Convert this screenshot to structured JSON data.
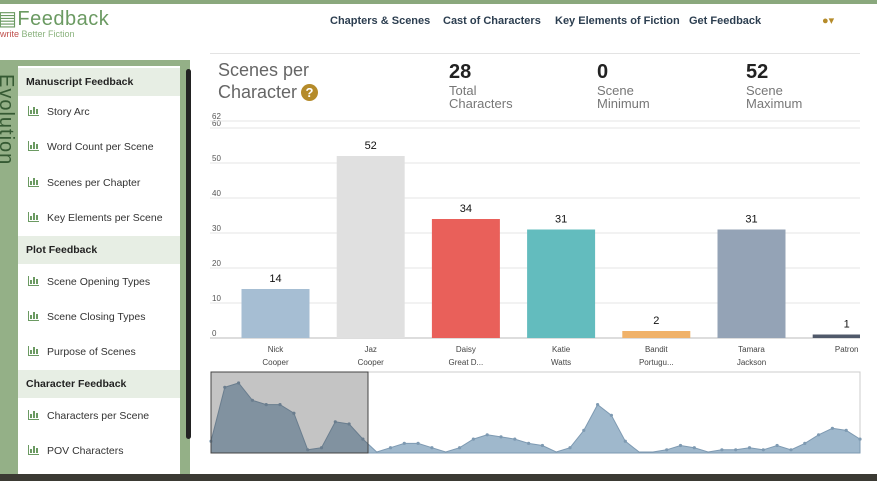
{
  "brand": {
    "title": "Feedback",
    "tagline_rest": "Better Fiction",
    "tagline_first": "write"
  },
  "nav": [
    "Chapters & Scenes",
    "Cast of Characters",
    "Key Elements of Fiction",
    "Get Feedback"
  ],
  "user_icon": "user-icon",
  "side_label": "Evolution",
  "sidebar": {
    "sections": [
      {
        "title": "Manuscript Feedback",
        "items": [
          "Story Arc",
          "Word Count per Scene",
          "Scenes per Chapter",
          "Key Elements per Scene"
        ]
      },
      {
        "title": "Plot Feedback",
        "items": [
          "Scene Opening Types",
          "Scene Closing Types",
          "Purpose of Scenes"
        ]
      },
      {
        "title": "Character Feedback",
        "items": [
          "Characters per Scene",
          "POV Characters"
        ]
      }
    ]
  },
  "stats": {
    "title_line1": "Scenes per",
    "title_line2": "Character",
    "help": "?",
    "total": {
      "value": "28",
      "label1": "Total",
      "label2": "Characters"
    },
    "min": {
      "value": "0",
      "label1": "Scene",
      "label2": "Minimum"
    },
    "max": {
      "value": "52",
      "label1": "Scene",
      "label2": "Maximum"
    }
  },
  "colors": {
    "accent": "#6b9a62",
    "gold": "#b58b2a"
  },
  "chart_data": {
    "type": "bar",
    "ylim": [
      0,
      62
    ],
    "yticks": [
      0,
      10,
      20,
      30,
      40,
      50,
      60,
      62
    ],
    "categories": [
      [
        "Nick",
        "Cooper"
      ],
      [
        "Jaz",
        "Cooper"
      ],
      [
        "Daisy",
        "Great D..."
      ],
      [
        "Katie",
        "Watts"
      ],
      [
        "Bandit",
        "Portugu..."
      ],
      [
        "Tamara",
        "Jackson"
      ],
      [
        "Patron",
        ""
      ]
    ],
    "values": [
      14,
      52,
      34,
      31,
      2,
      31,
      1
    ],
    "bar_colors": [
      "#a6bed3",
      "#e0e0e0",
      "#e9605a",
      "#63bcbe",
      "#f0b26a",
      "#94a3b6",
      "#50596a"
    ],
    "navigator": {
      "values": [
        5,
        30,
        32,
        24,
        22,
        22,
        18,
        1,
        2,
        14,
        13,
        6,
        0,
        2,
        4,
        4,
        2,
        0,
        2,
        6,
        8,
        7,
        6,
        4,
        3,
        0,
        2,
        10,
        22,
        17,
        5,
        0,
        0,
        1,
        3,
        2,
        0,
        1,
        1,
        2,
        1,
        3,
        1,
        4,
        8,
        11,
        10,
        6
      ]
    }
  }
}
